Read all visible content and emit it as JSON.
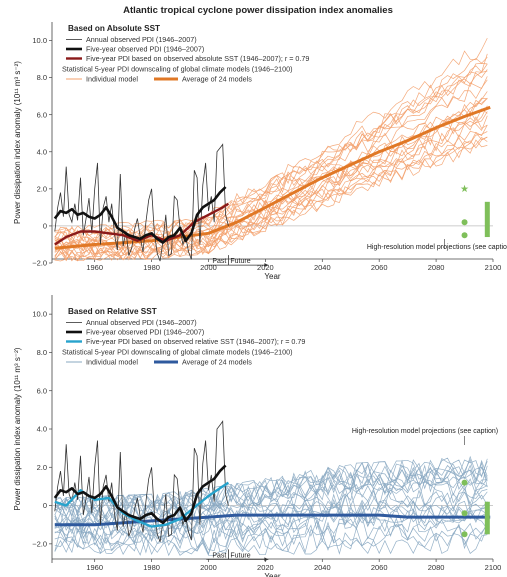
{
  "title": "Atlantic tropical cyclone power dissipation index anomalies",
  "colors": {
    "orange_ind": "#f3a06c",
    "orange_avg": "#e07826",
    "blue_ind": "#8aa9c2",
    "blue_avg": "#2f5a9e",
    "observed": "#333333",
    "smooth": "#111111",
    "sst_red": "#8b1a1a",
    "sst_cyan": "#27a3cc",
    "green": "#7fbf5a"
  },
  "chart_data": [
    {
      "type": "line",
      "subtitle": "Based on Absolute SST",
      "xlabel": "Year",
      "ylabel": "Power dissipation index anomaly (10¹¹ m³ s⁻²)",
      "xlim": [
        1945,
        2100
      ],
      "ylim": [
        -2.0,
        11.0
      ],
      "x_ticks": [
        "1960",
        "1980",
        "2000",
        "2020",
        "2040",
        "2060",
        "2080",
        "2100"
      ],
      "y_ticks": [
        "10.0",
        "8.0",
        "6.0",
        "4.0",
        "2.0",
        "0",
        "−2.0"
      ],
      "legend": [
        "Annual observed PDI (1946–2007)",
        "Five-year observed PDI (1946–2007)",
        "Five-year PDI based on observed absolute SST (1946–2007); r = 0.79",
        "Statistical 5-year PDI downscaling of global climate models (1946–2100)",
        "Individual model",
        "Average of 24 models"
      ],
      "annotations": {
        "past": "Past",
        "future": "Future",
        "hires": "High-resolution model projections (see caption)"
      },
      "series": [
        {
          "name": "Annual observed PDI (1946–2007)",
          "x": [
            1946,
            1947,
            1948,
            1949,
            1950,
            1951,
            1952,
            1953,
            1954,
            1955,
            1956,
            1957,
            1958,
            1959,
            1960,
            1961,
            1962,
            1963,
            1964,
            1965,
            1966,
            1967,
            1968,
            1969,
            1970,
            1971,
            1972,
            1973,
            1974,
            1975,
            1976,
            1977,
            1978,
            1979,
            1980,
            1981,
            1982,
            1983,
            1984,
            1985,
            1986,
            1987,
            1988,
            1989,
            1990,
            1991,
            1992,
            1993,
            1994,
            1995,
            1996,
            1997,
            1998,
            1999,
            2000,
            2001,
            2002,
            2003,
            2004,
            2005,
            2006,
            2007
          ],
          "y": [
            -0.3,
            1.0,
            1.8,
            0.5,
            3.2,
            0.6,
            0.2,
            1.2,
            0.3,
            2.6,
            -0.5,
            0.4,
            1.5,
            -0.4,
            2.0,
            3.4,
            -1.0,
            1.0,
            1.6,
            0.2,
            1.2,
            -0.5,
            -1.3,
            2.8,
            -1.1,
            -0.3,
            -1.6,
            -1.2,
            -0.2,
            0.4,
            -0.6,
            -1.4,
            0.2,
            1.4,
            2.0,
            -0.4,
            -1.5,
            -1.9,
            -0.8,
            0.6,
            -1.6,
            -1.5,
            1.6,
            1.4,
            -0.1,
            -1.0,
            -0.6,
            -1.4,
            -1.8,
            3.0,
            2.6,
            -1.0,
            2.2,
            3.4,
            0.8,
            1.6,
            0.2,
            4.0,
            4.2,
            4.4,
            0.6,
            0.0
          ]
        },
        {
          "name": "Five-year observed PDI (1946–2007)",
          "x": [
            1946,
            1948,
            1950,
            1952,
            1954,
            1956,
            1958,
            1960,
            1962,
            1964,
            1966,
            1968,
            1970,
            1972,
            1974,
            1976,
            1978,
            1980,
            1982,
            1984,
            1986,
            1988,
            1990,
            1992,
            1994,
            1996,
            1998,
            2000,
            2002,
            2004,
            2006
          ],
          "y": [
            0.4,
            0.8,
            0.7,
            0.9,
            0.6,
            0.7,
            0.5,
            0.4,
            0.6,
            1.0,
            0.5,
            -0.1,
            -0.3,
            -0.5,
            -0.6,
            -0.7,
            -0.5,
            -0.4,
            -0.7,
            -0.9,
            -0.6,
            -0.5,
            -0.1,
            -0.8,
            -0.4,
            0.6,
            1.0,
            1.2,
            1.4,
            1.8,
            2.1
          ]
        },
        {
          "name": "Five-year PDI based on observed absolute SST (1946–2007); r = 0.79",
          "x": [
            1946,
            1950,
            1955,
            1960,
            1965,
            1970,
            1975,
            1980,
            1985,
            1990,
            1995,
            2000,
            2005,
            2007
          ],
          "y": [
            -1.0,
            -0.6,
            -0.3,
            -0.3,
            -0.4,
            -0.5,
            -0.8,
            -0.5,
            -0.8,
            -0.5,
            0.2,
            0.6,
            1.0,
            1.2
          ]
        },
        {
          "name": "Average of 24 models",
          "x": [
            1946,
            1960,
            1980,
            2000,
            2010,
            2020,
            2030,
            2040,
            2050,
            2060,
            2070,
            2080,
            2090,
            2099
          ],
          "y": [
            -1.2,
            -1.0,
            -0.8,
            -0.4,
            0.2,
            1.0,
            1.8,
            2.6,
            3.3,
            4.0,
            4.6,
            5.3,
            5.9,
            6.4
          ]
        },
        {
          "name": "Individual model",
          "note": "24 runs shown as a spread envelope around the average",
          "x": [
            1946,
            1980,
            2000,
            2050,
            2099
          ],
          "ymin": [
            -1.9,
            -1.8,
            -1.5,
            1.5,
            3.9
          ],
          "ymax": [
            -0.1,
            0.3,
            0.8,
            5.5,
            10.6
          ]
        }
      ],
      "hires_points": [
        {
          "x": 2090,
          "y": 2.0,
          "marker": "star"
        },
        {
          "x": 2090,
          "y": 0.2,
          "marker": "circle"
        },
        {
          "x": 2090,
          "y": -0.5,
          "marker": "circle"
        }
      ],
      "hires_bar": {
        "x": 2098,
        "y0": -0.6,
        "y1": 1.3
      }
    },
    {
      "type": "line",
      "subtitle": "Based on Relative SST",
      "xlabel": "Year",
      "ylabel": "Power dissipation index anomaly (10¹¹ m³ s⁻²)",
      "xlim": [
        1945,
        2100
      ],
      "ylim": [
        -3.0,
        11.0
      ],
      "x_ticks": [
        "1960",
        "1980",
        "2000",
        "2020",
        "2040",
        "2060",
        "2080",
        "2100"
      ],
      "y_ticks": [
        "10.0",
        "8.0",
        "6.0",
        "4.0",
        "2.0",
        "0",
        "−2.0"
      ],
      "legend": [
        "Annual observed PDI (1946–2007)",
        "Five-year observed PDI (1946–2007)",
        "Five-year PDI based on observed relative SST (1946–2007); r = 0.79",
        "Statistical 5-year PDI downscaling of global climate models (1946–2100)",
        "Individual model",
        "Average of 24 models"
      ],
      "annotations": {
        "past": "Past",
        "future": "Future",
        "hires": "High-resolution model projections (see caption)"
      },
      "series": [
        {
          "name": "Annual observed PDI (1946–2007)",
          "x": [
            1946,
            1947,
            1948,
            1949,
            1950,
            1951,
            1952,
            1953,
            1954,
            1955,
            1956,
            1957,
            1958,
            1959,
            1960,
            1961,
            1962,
            1963,
            1964,
            1965,
            1966,
            1967,
            1968,
            1969,
            1970,
            1971,
            1972,
            1973,
            1974,
            1975,
            1976,
            1977,
            1978,
            1979,
            1980,
            1981,
            1982,
            1983,
            1984,
            1985,
            1986,
            1987,
            1988,
            1989,
            1990,
            1991,
            1992,
            1993,
            1994,
            1995,
            1996,
            1997,
            1998,
            1999,
            2000,
            2001,
            2002,
            2003,
            2004,
            2005,
            2006,
            2007
          ],
          "y": [
            -0.3,
            1.0,
            1.8,
            0.5,
            3.2,
            0.6,
            0.2,
            1.2,
            0.3,
            2.6,
            -0.5,
            0.4,
            1.5,
            -0.4,
            2.0,
            3.4,
            -1.0,
            1.0,
            1.6,
            0.2,
            1.2,
            -0.5,
            -1.3,
            2.8,
            -1.1,
            -0.3,
            -1.6,
            -1.2,
            -0.2,
            0.4,
            -0.6,
            -1.4,
            0.2,
            1.4,
            2.0,
            -0.4,
            -1.5,
            -1.9,
            -0.8,
            0.6,
            -1.6,
            -1.5,
            1.6,
            1.4,
            -0.1,
            -1.0,
            -0.6,
            -1.4,
            -1.8,
            3.0,
            2.6,
            -1.0,
            2.2,
            3.4,
            0.8,
            1.6,
            0.2,
            4.0,
            4.2,
            4.4,
            0.6,
            0.0
          ]
        },
        {
          "name": "Five-year observed PDI (1946–2007)",
          "x": [
            1946,
            1948,
            1950,
            1952,
            1954,
            1956,
            1958,
            1960,
            1962,
            1964,
            1966,
            1968,
            1970,
            1972,
            1974,
            1976,
            1978,
            1980,
            1982,
            1984,
            1986,
            1988,
            1990,
            1992,
            1994,
            1996,
            1998,
            2000,
            2002,
            2004,
            2006
          ],
          "y": [
            0.4,
            0.8,
            0.7,
            0.9,
            0.6,
            0.7,
            0.5,
            0.4,
            0.6,
            1.0,
            0.5,
            -0.1,
            -0.3,
            -0.5,
            -0.6,
            -0.7,
            -0.5,
            -0.4,
            -0.7,
            -0.9,
            -0.6,
            -0.5,
            -0.1,
            -0.8,
            -0.4,
            0.6,
            1.0,
            1.2,
            1.4,
            1.8,
            2.1
          ]
        },
        {
          "name": "Five-year PDI based on observed relative SST (1946–2007); r = 0.79",
          "x": [
            1946,
            1950,
            1955,
            1960,
            1965,
            1970,
            1975,
            1980,
            1985,
            1990,
            1995,
            2000,
            2005,
            2007
          ],
          "y": [
            0.2,
            0.0,
            0.8,
            0.3,
            0.4,
            -0.4,
            -0.8,
            -1.1,
            -1.0,
            -0.7,
            -0.1,
            0.5,
            1.0,
            1.2
          ]
        },
        {
          "name": "Average of 24 models",
          "x": [
            1946,
            1960,
            1980,
            2000,
            2010,
            2020,
            2030,
            2040,
            2050,
            2060,
            2070,
            2080,
            2090,
            2099
          ],
          "y": [
            -1.0,
            -1.0,
            -0.8,
            -0.6,
            -0.5,
            -0.5,
            -0.5,
            -0.5,
            -0.5,
            -0.5,
            -0.6,
            -0.6,
            -0.6,
            -0.6
          ]
        },
        {
          "name": "Individual model",
          "note": "24 runs shown as a spread envelope around the average",
          "x": [
            1946,
            1980,
            2000,
            2050,
            2099
          ],
          "ymin": [
            -2.4,
            -2.6,
            -2.6,
            -2.5,
            -2.5
          ],
          "ymax": [
            0.4,
            0.6,
            0.9,
            2.2,
            2.6
          ]
        }
      ],
      "hires_points": [
        {
          "x": 2090,
          "y": 1.2,
          "marker": "circle"
        },
        {
          "x": 2090,
          "y": -0.4,
          "marker": "circle"
        },
        {
          "x": 2090,
          "y": -1.5,
          "marker": "circle"
        }
      ],
      "hires_bar": {
        "x": 2098,
        "y0": -1.5,
        "y1": 0.2
      }
    }
  ]
}
